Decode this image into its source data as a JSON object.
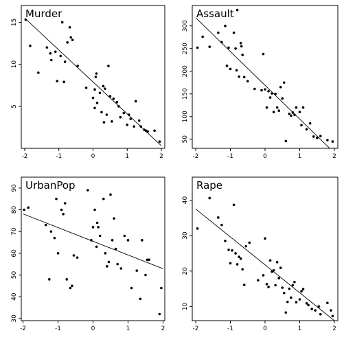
{
  "chart_data": [
    {
      "type": "scatter",
      "title": "Murder",
      "xlim": [
        -2.1,
        2.1
      ],
      "ylim": [
        0,
        17
      ],
      "xticks": [
        -2,
        -1,
        0,
        1,
        2
      ],
      "yticks": [
        5,
        10,
        15
      ],
      "line": [
        [
          -2,
          15.5
        ],
        [
          2,
          0.3
        ]
      ],
      "x": [
        -1.97,
        -1.84,
        -1.6,
        -1.35,
        -1.25,
        -1.22,
        -1.1,
        -1.05,
        -0.95,
        -0.9,
        -0.85,
        -0.82,
        -0.75,
        -0.68,
        -0.65,
        -0.6,
        -0.45,
        -0.2,
        0.0,
        0.05,
        0.05,
        0.08,
        0.1,
        0.12,
        0.2,
        0.25,
        0.3,
        0.32,
        0.35,
        0.4,
        0.45,
        0.5,
        0.55,
        0.6,
        0.7,
        0.75,
        0.8,
        0.9,
        1.0,
        1.05,
        1.1,
        1.2,
        1.25,
        1.35,
        1.4,
        1.5,
        1.55,
        1.6,
        1.8,
        1.95
      ],
      "y": [
        15.3,
        12.2,
        9.0,
        12.0,
        11.3,
        10.5,
        11.5,
        8.0,
        11.0,
        15.0,
        7.9,
        10.3,
        12.6,
        14.4,
        13.2,
        12.9,
        9.8,
        7.2,
        6.0,
        4.8,
        7.0,
        8.5,
        8.9,
        5.4,
        6.6,
        4.3,
        7.4,
        3.1,
        7.1,
        4.0,
        9.8,
        6.2,
        3.2,
        5.9,
        5.5,
        5.0,
        3.7,
        4.2,
        2.8,
        4.0,
        3.5,
        2.6,
        5.6,
        3.3,
        2.6,
        2.2,
        2.1,
        2.0,
        2.1,
        0.8
      ]
    },
    {
      "type": "scatter",
      "title": "Assault",
      "xlim": [
        -2.1,
        2.1
      ],
      "ylim": [
        30,
        345
      ],
      "xticks": [
        -2,
        -1,
        0,
        1,
        2
      ],
      "yticks": [
        50,
        100,
        150,
        200,
        250,
        300
      ],
      "line": [
        [
          -2,
          318
        ],
        [
          2,
          20
        ]
      ],
      "x": [
        -1.95,
        -1.8,
        -1.6,
        -1.35,
        -1.25,
        -1.15,
        -1.1,
        -1.05,
        -1.0,
        -0.9,
        -0.85,
        -0.82,
        -0.8,
        -0.75,
        -0.7,
        -0.68,
        -0.65,
        -0.6,
        -0.5,
        -0.3,
        -0.1,
        -0.05,
        0.0,
        0.05,
        0.1,
        0.15,
        0.2,
        0.25,
        0.3,
        0.35,
        0.4,
        0.45,
        0.5,
        0.55,
        0.6,
        0.7,
        0.75,
        0.8,
        0.85,
        0.9,
        1.0,
        1.05,
        1.1,
        1.2,
        1.3,
        1.4,
        1.5,
        1.6,
        1.8,
        1.95
      ],
      "y": [
        252,
        276,
        254,
        285,
        264,
        300,
        212,
        252,
        205,
        285,
        250,
        202,
        335,
        188,
        262,
        255,
        236,
        187,
        178,
        161,
        158,
        238,
        160,
        120,
        156,
        142,
        151,
        110,
        150,
        120,
        113,
        165,
        140,
        175,
        46,
        106,
        102,
        109,
        104,
        120,
        110,
        81,
        120,
        72,
        85,
        56,
        53,
        57,
        48,
        45
      ]
    },
    {
      "type": "scatter",
      "title": "UrbanPop",
      "xlim": [
        -2.05,
        2.05
      ],
      "ylim": [
        29,
        95
      ],
      "xticks": [
        -2,
        -1,
        0,
        1,
        2
      ],
      "yticks": [
        30,
        40,
        50,
        60,
        70,
        80,
        90
      ],
      "line": [
        [
          -2,
          78.1
        ],
        [
          2,
          52.9
        ]
      ],
      "x": [
        -1.97,
        -1.85,
        -1.35,
        -1.25,
        -1.2,
        -1.1,
        -1.05,
        -1.0,
        -0.9,
        -0.85,
        -0.8,
        -0.75,
        -0.65,
        -0.6,
        -0.55,
        -0.45,
        -0.15,
        -0.05,
        0.0,
        0.05,
        0.1,
        0.12,
        0.15,
        0.2,
        0.3,
        0.35,
        0.4,
        0.45,
        0.5,
        0.55,
        0.6,
        0.65,
        0.7,
        0.8,
        0.9,
        1.0,
        1.1,
        1.25,
        1.35,
        1.4,
        1.5,
        1.55,
        1.6,
        1.9,
        1.95
      ],
      "y": [
        80.0,
        81.0,
        73.0,
        48.0,
        70.0,
        67.0,
        85.0,
        60.0,
        80.0,
        78.0,
        83.0,
        48.0,
        44.0,
        45.0,
        59.0,
        58.0,
        89.0,
        66.0,
        72.0,
        80.0,
        63.0,
        74.0,
        72.0,
        68.0,
        85.0,
        60.0,
        54.0,
        56.0,
        87.0,
        66.0,
        76.0,
        62.0,
        55.0,
        53.0,
        68.0,
        66.0,
        44.0,
        52.0,
        39.0,
        66.0,
        50.0,
        57.0,
        57.0,
        32.0,
        44.0
      ]
    },
    {
      "type": "scatter",
      "title": "Rape",
      "xlim": [
        -2.1,
        2.1
      ],
      "ylim": [
        6,
        46.5
      ],
      "xticks": [
        -2,
        -1,
        0,
        1,
        2
      ],
      "yticks": [
        10,
        20,
        30,
        40
      ],
      "line": [
        [
          -2,
          37.5
        ],
        [
          2,
          6.0
        ]
      ],
      "x": [
        -1.95,
        -1.6,
        -1.35,
        -1.25,
        -1.15,
        -1.05,
        -1.0,
        -0.95,
        -0.9,
        -0.85,
        -0.8,
        -0.75,
        -0.7,
        -0.65,
        -0.6,
        -0.55,
        -0.45,
        -0.2,
        -0.05,
        0.0,
        0.05,
        0.1,
        0.15,
        0.2,
        0.25,
        0.3,
        0.35,
        0.4,
        0.45,
        0.5,
        0.55,
        0.6,
        0.65,
        0.7,
        0.75,
        0.8,
        0.85,
        0.9,
        1.0,
        1.05,
        1.1,
        1.2,
        1.25,
        1.35,
        1.45,
        1.55,
        1.6,
        1.8,
        1.9,
        1.95
      ],
      "y": [
        32.0,
        40.6,
        35.1,
        33.0,
        28.5,
        26.0,
        22.2,
        25.8,
        38.7,
        25.0,
        21.9,
        24.0,
        23.5,
        20.5,
        16.1,
        27.0,
        28.0,
        17.4,
        18.8,
        29.2,
        16.3,
        15.5,
        23.0,
        19.8,
        20.2,
        16.0,
        22.5,
        18.0,
        20.9,
        15.3,
        13.8,
        8.3,
        11.3,
        15.0,
        12.5,
        16.0,
        16.9,
        11.2,
        12.0,
        14.3,
        14.9,
        10.9,
        10.4,
        9.3,
        8.9,
        10.0,
        7.8,
        11.0,
        8.9,
        7.3
      ]
    }
  ]
}
